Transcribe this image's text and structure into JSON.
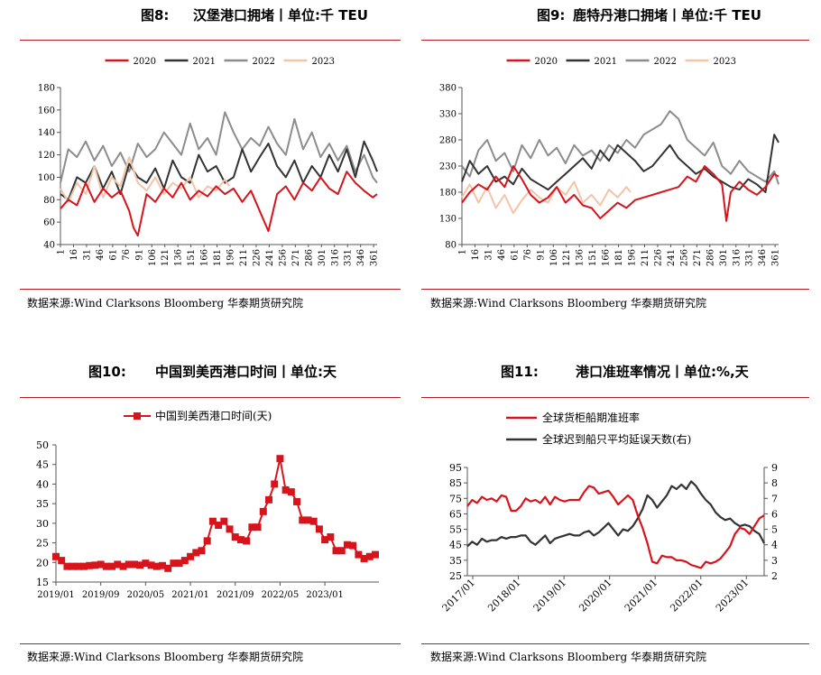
{
  "source_text": "数据来源:Wind Clarksons Bloomberg 华泰期货研究院",
  "colors": {
    "red": "#d7141b",
    "black": "#333333",
    "gray": "#8c8c8c",
    "peach": "#f4c4a8",
    "rule": "#b01e23"
  },
  "figures": [
    {
      "label": "图8:",
      "title": "汉堡港口拥堵丨单位:千 TEU"
    },
    {
      "label": "图9:",
      "title": "鹿特丹港口拥堵丨单位:千 TEU"
    },
    {
      "label": "图10:",
      "title": "中国到美西港口时间丨单位:天"
    },
    {
      "label": "图11:",
      "title": "港口准班率情况丨单位:%,天"
    }
  ],
  "chart_data": [
    {
      "type": "line",
      "title": "汉堡港口拥堵丨单位:千 TEU",
      "legend": [
        "2020",
        "2021",
        "2022",
        "2023"
      ],
      "ylim": [
        40,
        180
      ],
      "yticks": [
        40,
        60,
        80,
        100,
        120,
        140,
        160,
        180
      ],
      "xlim": [
        1,
        365
      ],
      "xticks": [
        "1",
        "16",
        "31",
        "46",
        "61",
        "76",
        "91",
        "106",
        "121",
        "136",
        "151",
        "166",
        "181",
        "196",
        "211",
        "226",
        "241",
        "256",
        "271",
        "286",
        "301",
        "316",
        "331",
        "346",
        "361"
      ],
      "series": [
        {
          "name": "2020",
          "x": [
            1,
            10,
            20,
            30,
            40,
            50,
            60,
            70,
            80,
            85,
            90,
            100,
            110,
            120,
            130,
            140,
            150,
            160,
            170,
            180,
            190,
            200,
            210,
            220,
            230,
            240,
            250,
            260,
            270,
            280,
            290,
            300,
            310,
            320,
            330,
            340,
            350,
            360,
            365
          ],
          "y": [
            72,
            80,
            75,
            95,
            78,
            90,
            82,
            88,
            70,
            55,
            48,
            85,
            78,
            90,
            82,
            95,
            80,
            88,
            83,
            92,
            85,
            90,
            78,
            88,
            70,
            52,
            85,
            92,
            80,
            95,
            88,
            100,
            90,
            85,
            105,
            95,
            88,
            82,
            85
          ]
        },
        {
          "name": "2021",
          "x": [
            1,
            10,
            20,
            30,
            40,
            50,
            60,
            70,
            80,
            90,
            100,
            110,
            120,
            130,
            140,
            150,
            160,
            170,
            180,
            190,
            200,
            210,
            220,
            230,
            240,
            250,
            260,
            270,
            280,
            290,
            300,
            310,
            320,
            330,
            340,
            350,
            360,
            365
          ],
          "y": [
            85,
            80,
            100,
            95,
            110,
            90,
            105,
            85,
            112,
            100,
            95,
            108,
            90,
            115,
            100,
            95,
            120,
            105,
            110,
            95,
            100,
            125,
            105,
            118,
            130,
            110,
            100,
            115,
            95,
            110,
            100,
            120,
            105,
            125,
            100,
            132,
            115,
            105
          ]
        },
        {
          "name": "2022",
          "x": [
            1,
            10,
            20,
            30,
            40,
            50,
            60,
            70,
            80,
            90,
            100,
            110,
            120,
            130,
            140,
            150,
            160,
            170,
            180,
            190,
            200,
            210,
            220,
            230,
            240,
            250,
            260,
            270,
            280,
            290,
            300,
            310,
            320,
            330,
            340,
            350,
            360,
            365
          ],
          "y": [
            95,
            125,
            118,
            132,
            115,
            128,
            110,
            122,
            105,
            130,
            118,
            125,
            140,
            130,
            120,
            148,
            125,
            135,
            120,
            158,
            140,
            125,
            135,
            128,
            145,
            130,
            120,
            152,
            125,
            140,
            118,
            130,
            115,
            128,
            105,
            120,
            100,
            95
          ]
        },
        {
          "name": "2023",
          "x": [
            1,
            10,
            20,
            30,
            40,
            50,
            60,
            70,
            80,
            90,
            100,
            110,
            120,
            130,
            140,
            150,
            160,
            170,
            180,
            190,
            195
          ],
          "y": [
            90,
            78,
            95,
            85,
            110,
            82,
            100,
            92,
            118,
            95,
            88,
            100,
            85,
            95,
            90,
            100,
            82,
            92,
            88,
            98,
            92
          ]
        }
      ]
    },
    {
      "type": "line",
      "title": "鹿特丹港口拥堵丨单位:千 TEU",
      "legend": [
        "2020",
        "2021",
        "2022",
        "2023"
      ],
      "ylim": [
        80,
        380
      ],
      "yticks": [
        80,
        130,
        180,
        230,
        280,
        330,
        380
      ],
      "xlim": [
        1,
        365
      ],
      "xticks": [
        "1",
        "16",
        "31",
        "46",
        "61",
        "76",
        "91",
        "106",
        "121",
        "136",
        "151",
        "166",
        "181",
        "196",
        "211",
        "226",
        "241",
        "256",
        "271",
        "286",
        "301",
        "316",
        "331",
        "346",
        "361"
      ],
      "series": [
        {
          "name": "2020",
          "x": [
            1,
            10,
            20,
            30,
            40,
            50,
            60,
            70,
            80,
            90,
            100,
            110,
            120,
            130,
            140,
            150,
            160,
            170,
            180,
            190,
            200,
            210,
            220,
            230,
            240,
            250,
            260,
            270,
            280,
            290,
            300,
            305,
            310,
            320,
            330,
            340,
            350,
            360,
            365
          ],
          "y": [
            160,
            180,
            195,
            185,
            210,
            190,
            230,
            205,
            175,
            160,
            170,
            190,
            160,
            175,
            155,
            150,
            130,
            145,
            160,
            150,
            165,
            170,
            175,
            180,
            185,
            190,
            210,
            200,
            230,
            215,
            195,
            125,
            180,
            200,
            185,
            175,
            190,
            215,
            210
          ]
        },
        {
          "name": "2021",
          "x": [
            1,
            10,
            20,
            30,
            40,
            50,
            60,
            70,
            80,
            90,
            100,
            110,
            120,
            130,
            140,
            150,
            160,
            170,
            180,
            190,
            200,
            210,
            220,
            230,
            240,
            250,
            260,
            270,
            280,
            290,
            300,
            310,
            320,
            330,
            340,
            350,
            360,
            365
          ],
          "y": [
            200,
            240,
            215,
            230,
            200,
            210,
            195,
            225,
            205,
            195,
            185,
            200,
            215,
            230,
            245,
            225,
            260,
            240,
            270,
            255,
            240,
            220,
            230,
            250,
            270,
            245,
            230,
            215,
            225,
            210,
            200,
            190,
            185,
            205,
            195,
            180,
            290,
            275
          ]
        },
        {
          "name": "2022",
          "x": [
            1,
            10,
            20,
            30,
            40,
            50,
            60,
            70,
            80,
            90,
            100,
            110,
            120,
            130,
            140,
            150,
            160,
            170,
            180,
            190,
            200,
            210,
            220,
            230,
            240,
            250,
            260,
            270,
            280,
            290,
            300,
            310,
            320,
            330,
            340,
            350,
            360,
            365
          ],
          "y": [
            230,
            210,
            260,
            280,
            240,
            255,
            220,
            270,
            245,
            280,
            250,
            265,
            235,
            270,
            250,
            260,
            240,
            270,
            255,
            280,
            265,
            290,
            300,
            310,
            335,
            320,
            280,
            265,
            250,
            275,
            230,
            215,
            240,
            220,
            210,
            200,
            220,
            195
          ]
        },
        {
          "name": "2023",
          "x": [
            1,
            10,
            20,
            30,
            40,
            50,
            60,
            70,
            80,
            90,
            100,
            110,
            120,
            130,
            140,
            150,
            160,
            170,
            180,
            190,
            195
          ],
          "y": [
            170,
            195,
            160,
            190,
            150,
            175,
            140,
            165,
            185,
            170,
            160,
            190,
            175,
            200,
            160,
            175,
            155,
            185,
            170,
            190,
            180
          ]
        }
      ]
    },
    {
      "type": "line",
      "title": "中国到美西港口时间丨单位:天",
      "legend": [
        "中国到美西港口时间(天)"
      ],
      "ylim": [
        15,
        50
      ],
      "yticks": [
        15,
        20,
        25,
        30,
        35,
        40,
        45,
        50
      ],
      "xticks": [
        "2019/01",
        "2019/09",
        "2020/05",
        "2021/01",
        "2021/09",
        "2022/05",
        "2023/01"
      ],
      "series": [
        {
          "name": "中国到美西港口时间(天)",
          "values": [
            21.5,
            20.5,
            19,
            19,
            19,
            19,
            19.2,
            19.3,
            19.5,
            19,
            19,
            19.5,
            19,
            19.5,
            19.5,
            19.3,
            19.8,
            19.3,
            19,
            19.2,
            18.5,
            19.8,
            19.8,
            20.5,
            21.5,
            22.5,
            23,
            25.5,
            30.5,
            29.5,
            30.5,
            28.5,
            26.5,
            25.8,
            25.5,
            29,
            29,
            33,
            36,
            40,
            46.5,
            38.5,
            38,
            35.5,
            30.8,
            30.8,
            30.5,
            28.5,
            25.8,
            26.5,
            23,
            23,
            24.5,
            24.3,
            22,
            21,
            21.5,
            22
          ]
        }
      ]
    },
    {
      "type": "line",
      "title": "港口准班率情况丨单位:%,天",
      "legend": [
        "全球货柜船期准班率",
        "全球迟到船只平均延误天数(右)"
      ],
      "ylim": [
        25,
        95
      ],
      "yticks": [
        25,
        35,
        45,
        55,
        65,
        75,
        85,
        95
      ],
      "y2lim": [
        2,
        9
      ],
      "y2ticks": [
        2,
        3,
        4,
        5,
        6,
        7,
        8,
        9
      ],
      "xticks": [
        "2017/01",
        "2018/01",
        "2019/01",
        "2020/01",
        "2021/01",
        "2022/01",
        "2023/01"
      ],
      "series": [
        {
          "name": "全球货柜船期准班率",
          "axis": "left",
          "values": [
            70,
            74,
            72,
            76,
            74,
            75,
            73,
            77,
            76,
            67,
            67,
            70,
            75,
            73,
            74,
            72,
            76,
            71,
            76,
            74,
            73,
            74,
            74,
            74,
            79,
            83,
            82,
            78,
            79,
            80,
            76,
            71,
            74,
            77,
            74,
            64,
            56,
            46,
            34,
            33,
            38,
            37,
            37,
            35,
            35,
            34,
            32,
            31,
            30,
            34,
            33,
            34,
            36,
            40,
            44,
            52,
            56,
            55,
            52,
            57,
            62,
            64
          ]
        },
        {
          "name": "全球迟到船只平均延误天数(右)",
          "axis": "right",
          "values": [
            3.9,
            4.2,
            4.0,
            4.4,
            4.2,
            4.3,
            4.3,
            4.5,
            4.4,
            4.5,
            4.5,
            4.6,
            4.6,
            4.2,
            4.0,
            4.3,
            4.6,
            4.1,
            4.4,
            4.5,
            4.6,
            4.7,
            4.6,
            4.6,
            4.8,
            4.9,
            4.6,
            4.8,
            5.1,
            5.4,
            5.0,
            4.6,
            5.0,
            4.9,
            5.2,
            5.7,
            6.3,
            7.2,
            6.9,
            6.4,
            6.8,
            7.2,
            7.8,
            7.6,
            7.9,
            7.6,
            8.1,
            7.8,
            7.3,
            6.9,
            6.6,
            6.1,
            5.8,
            5.6,
            5.7,
            5.4,
            5.2,
            5.3,
            5.2,
            4.9,
            4.7,
            4.1
          ]
        }
      ]
    }
  ]
}
